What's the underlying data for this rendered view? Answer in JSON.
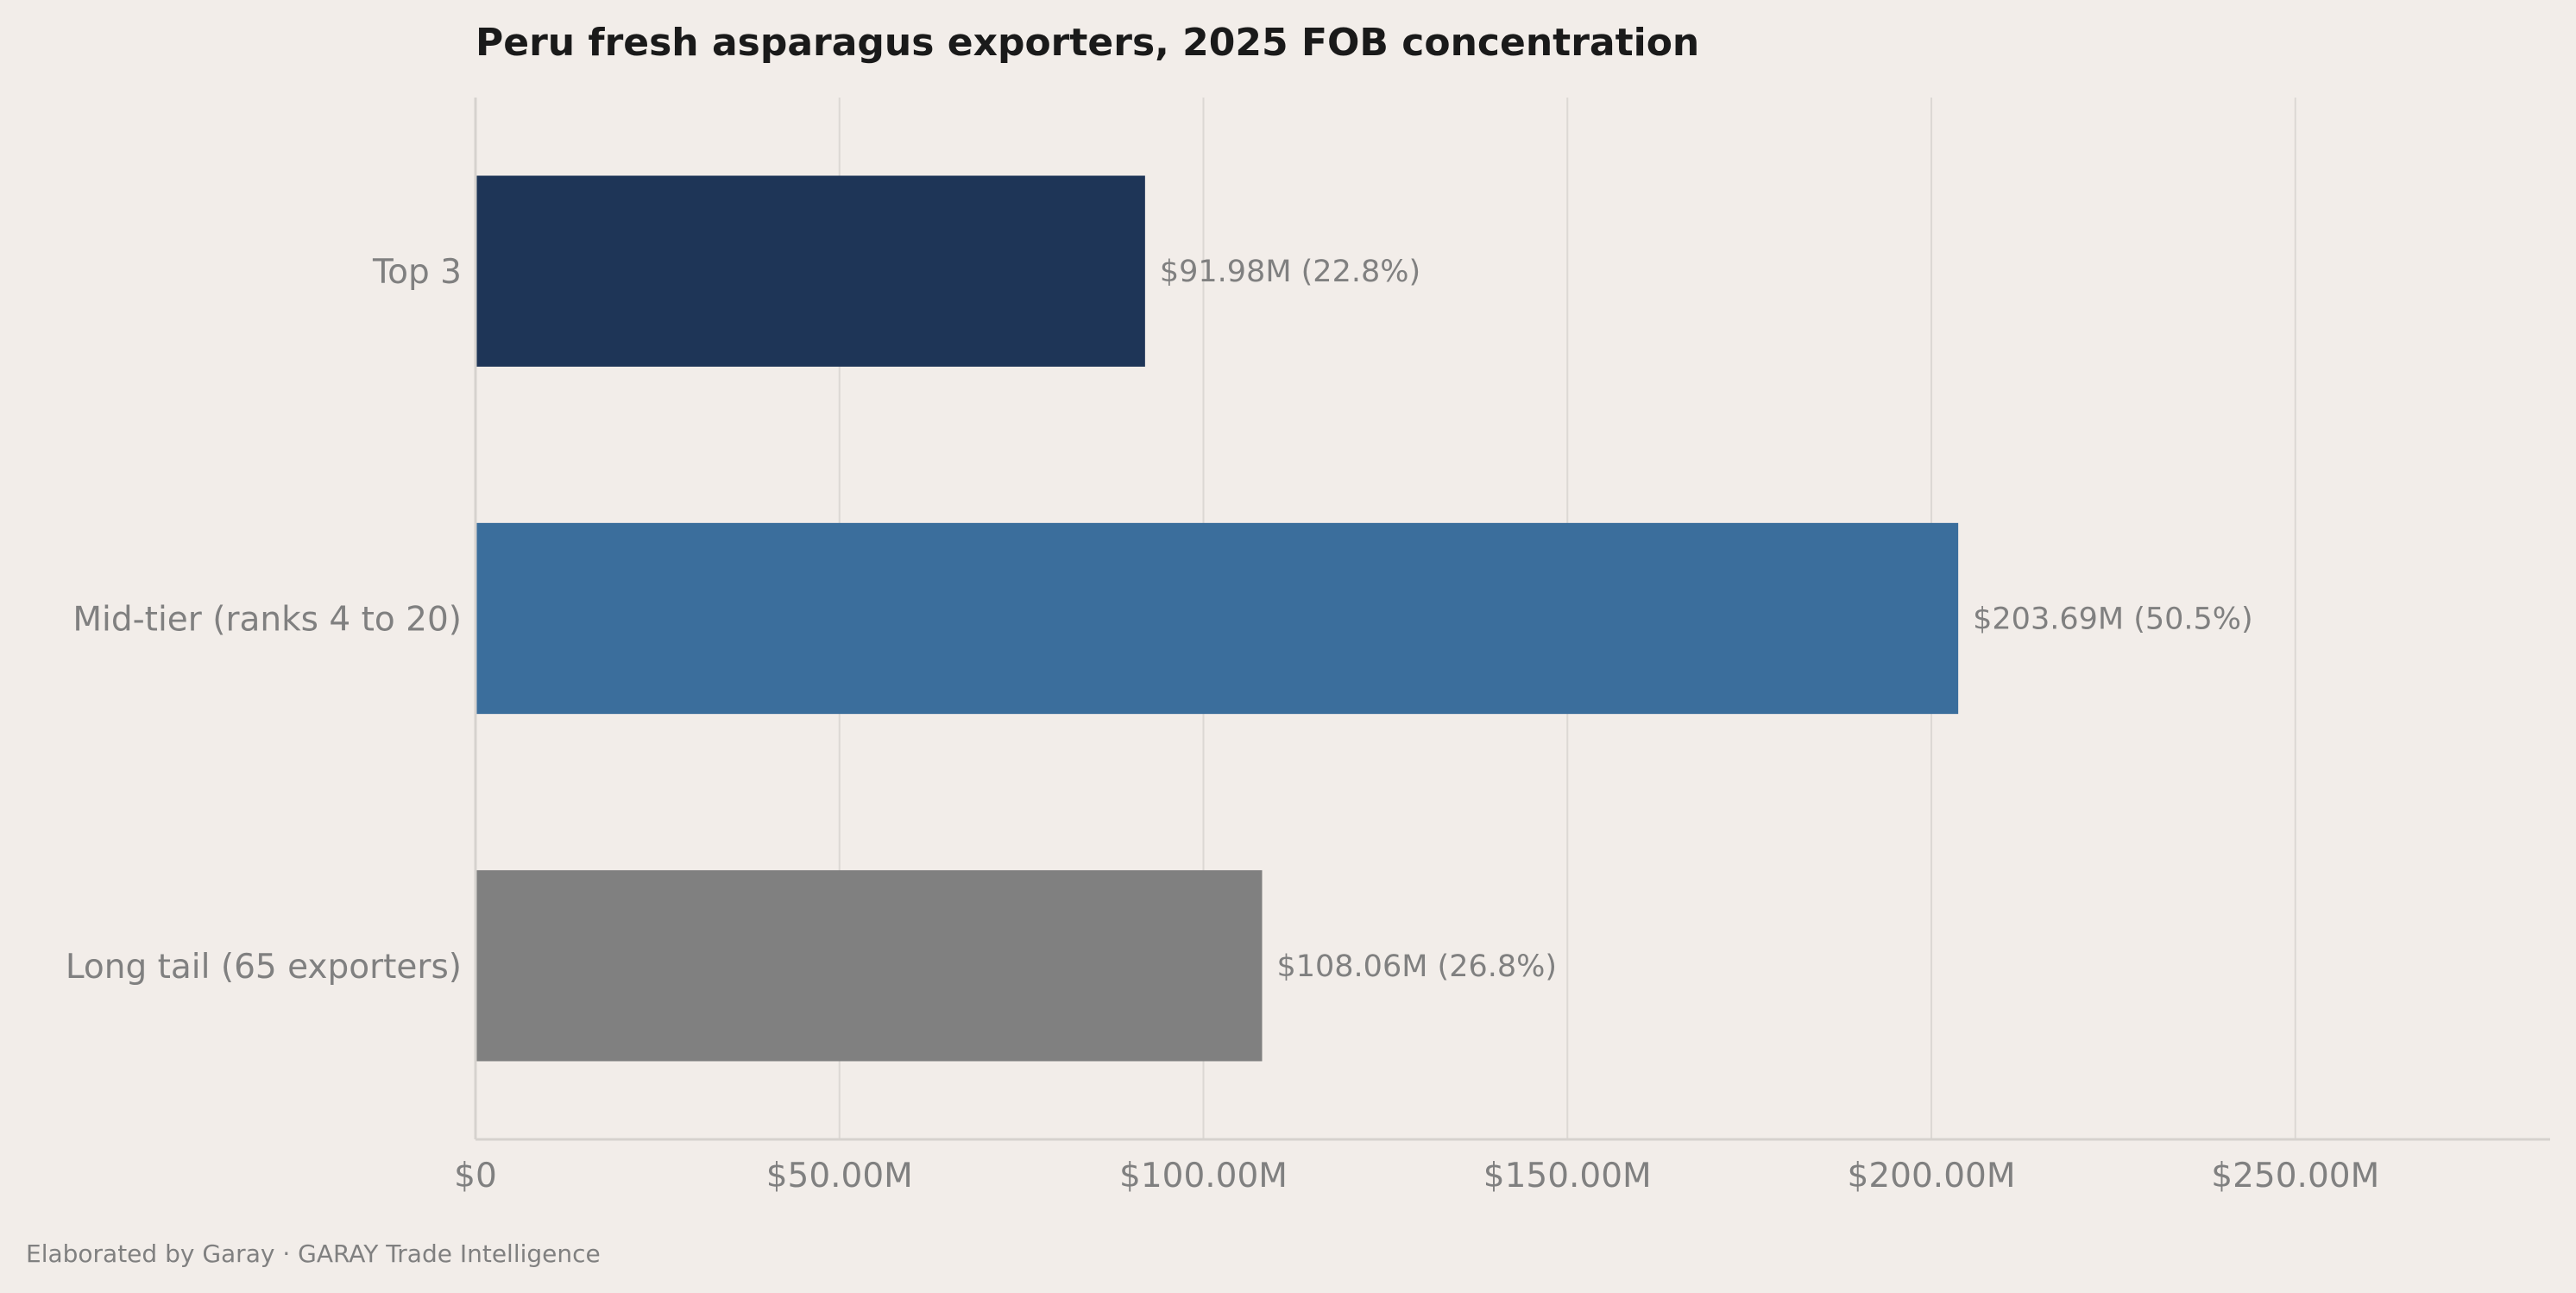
{
  "footer_text": "Elaborated by Garay  ·  GARAY Trade Intelligence",
  "chart_data": {
    "type": "bar",
    "orientation": "horizontal",
    "title": "Peru fresh asparagus exporters, 2025 FOB concentration",
    "xlabel": "",
    "ylabel": "",
    "categories": [
      "Top 3",
      "Mid-tier (ranks 4 to 20)",
      "Long tail (65 exporters)"
    ],
    "values": [
      91.98,
      203.69,
      108.06
    ],
    "value_unit": "USD millions",
    "bar_labels": [
      "$91.98M  (22.8%)",
      "$203.69M  (50.5%)",
      "$108.06M  (26.8%)"
    ],
    "colors": [
      "#1e3557",
      "#3b6e9c",
      "#808080"
    ],
    "xlim": [
      0,
      285
    ],
    "xticks": [
      0,
      50,
      100,
      150,
      200,
      250
    ],
    "xtick_labels": [
      "$0",
      "$50.00M",
      "$100.00M",
      "$150.00M",
      "$200.00M",
      "$250.00M"
    ],
    "grid": "vertical",
    "legend": "none"
  }
}
